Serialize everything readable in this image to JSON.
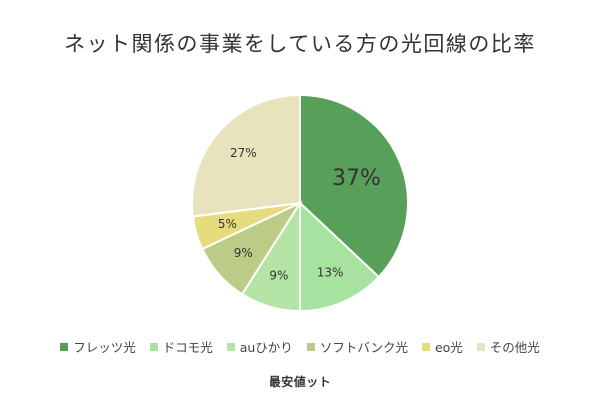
{
  "chart_data": {
    "type": "pie",
    "title": "ネット関係の事業をしている方の光回線の比率",
    "categories": [
      "フレッツ光",
      "ドコモ光",
      "auひかり",
      "ソフトバンク光",
      "eo光",
      "その他光"
    ],
    "values": [
      37,
      13,
      9,
      9,
      5,
      27
    ],
    "labels": [
      "37%",
      "13%",
      "9%",
      "9%",
      "5%",
      "27%"
    ],
    "colors": [
      "#58a05a",
      "#a8e2a0",
      "#b4e5a6",
      "#bccb86",
      "#e6dc7e",
      "#e8e2bd"
    ],
    "legend_position": "bottom"
  },
  "logo": {
    "text": "最安値ット"
  }
}
